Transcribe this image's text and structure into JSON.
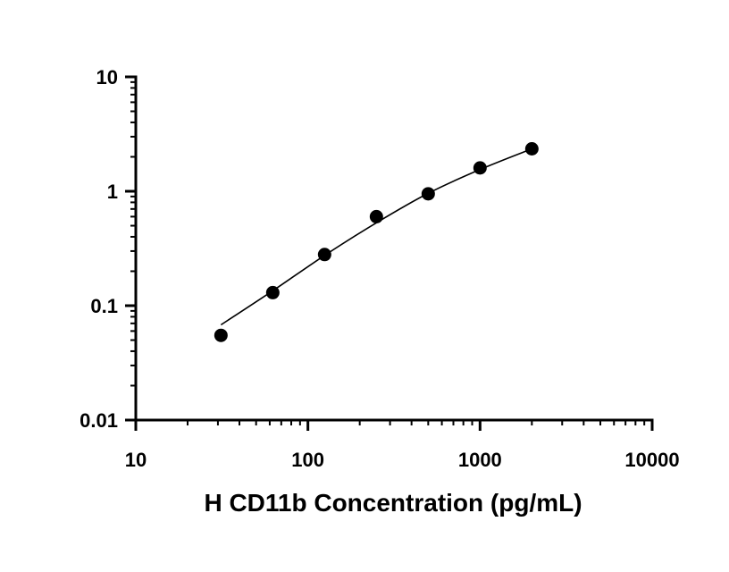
{
  "chart_data": {
    "type": "scatter",
    "title": "",
    "xlabel": "H CD11b Concentration (pg/mL)",
    "ylabel": "",
    "x_scale": "log",
    "y_scale": "log",
    "xlim": [
      10,
      10000
    ],
    "ylim": [
      0.01,
      10
    ],
    "x_ticks": [
      {
        "value": 10,
        "label": "10"
      },
      {
        "value": 100,
        "label": "100"
      },
      {
        "value": 1000,
        "label": "1000"
      },
      {
        "value": 10000,
        "label": "10000"
      }
    ],
    "y_ticks": [
      {
        "value": 0.01,
        "label": "0.01"
      },
      {
        "value": 0.1,
        "label": "0.1"
      },
      {
        "value": 1,
        "label": "1"
      },
      {
        "value": 10,
        "label": "10"
      }
    ],
    "grid": false,
    "points": {
      "x": [
        31.25,
        62.5,
        125,
        250,
        500,
        1000,
        2000
      ],
      "y": [
        0.055,
        0.13,
        0.28,
        0.6,
        0.95,
        1.6,
        2.35
      ]
    },
    "fit_curve": {
      "x": [
        31.25,
        62.5,
        125,
        250,
        500,
        1000,
        2000
      ],
      "y": [
        0.068,
        0.135,
        0.275,
        0.53,
        0.96,
        1.55,
        2.35
      ]
    },
    "colors": {
      "marker": "#000000",
      "line": "#000000",
      "axis": "#000000"
    }
  }
}
